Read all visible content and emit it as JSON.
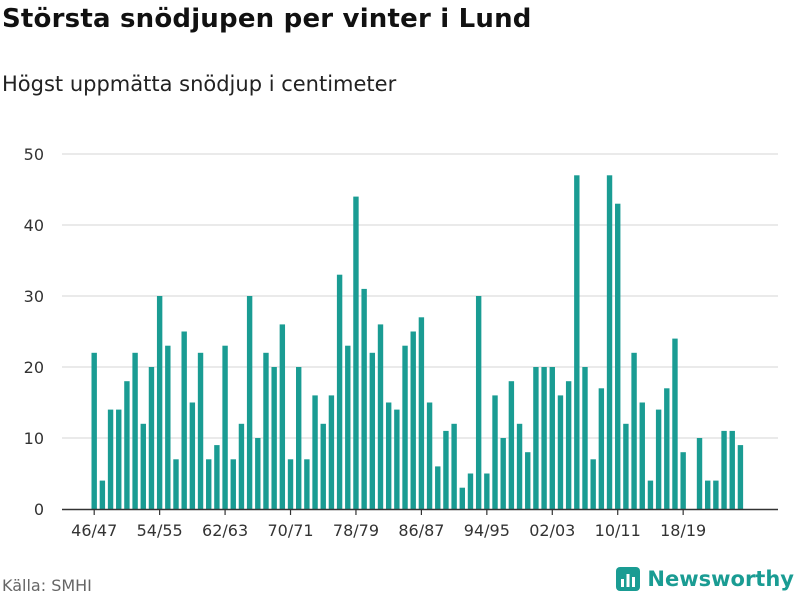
{
  "header": {
    "title": "Största snödjupen per vinter i Lund",
    "subtitle": "Högst uppmätta snödjup i centimeter"
  },
  "footer": {
    "source": "Källa: SMHI",
    "brand": "Newsworthy"
  },
  "colors": {
    "bar": "#1a9c93",
    "grid": "#dddddd",
    "axis": "#333333",
    "brand": "#1a9c93"
  },
  "chart_data": {
    "type": "bar",
    "title": "Största snödjupen per vinter i Lund",
    "subtitle": "Högst uppmätta snödjup i centimeter",
    "xlabel": "",
    "ylabel": "",
    "ylim": [
      0,
      50
    ],
    "yticks": [
      0,
      10,
      20,
      30,
      40,
      50
    ],
    "grid": true,
    "first_season_start": 1946,
    "tick_labels": [
      "46/47",
      "54/55",
      "62/63",
      "70/71",
      "78/79",
      "86/87",
      "94/95",
      "02/03",
      "10/11",
      "18/19"
    ],
    "categories": [
      "46/47",
      "47/48",
      "48/49",
      "49/50",
      "50/51",
      "51/52",
      "52/53",
      "53/54",
      "54/55",
      "55/56",
      "56/57",
      "57/58",
      "58/59",
      "59/60",
      "60/61",
      "61/62",
      "62/63",
      "63/64",
      "64/65",
      "65/66",
      "66/67",
      "67/68",
      "68/69",
      "69/70",
      "70/71",
      "71/72",
      "72/73",
      "73/74",
      "74/75",
      "75/76",
      "76/77",
      "77/78",
      "78/79",
      "79/80",
      "80/81",
      "81/82",
      "82/83",
      "83/84",
      "84/85",
      "85/86",
      "86/87",
      "87/88",
      "88/89",
      "89/90",
      "90/91",
      "91/92",
      "92/93",
      "93/94",
      "94/95",
      "95/96",
      "96/97",
      "97/98",
      "98/99",
      "99/00",
      "00/01",
      "01/02",
      "02/03",
      "03/04",
      "04/05",
      "05/06",
      "06/07",
      "07/08",
      "08/09",
      "09/10",
      "10/11",
      "11/12",
      "12/13",
      "13/14",
      "14/15",
      "15/16",
      "16/17",
      "17/18",
      "18/19",
      "19/20",
      "20/21",
      "21/22",
      "22/23",
      "23/24",
      "24/25",
      "25/26"
    ],
    "values": [
      22,
      4,
      14,
      14,
      18,
      22,
      12,
      20,
      30,
      23,
      7,
      25,
      15,
      22,
      7,
      9,
      23,
      7,
      12,
      30,
      10,
      22,
      20,
      26,
      7,
      20,
      7,
      16,
      12,
      16,
      33,
      23,
      44,
      31,
      22,
      26,
      15,
      14,
      23,
      25,
      27,
      15,
      6,
      11,
      12,
      3,
      5,
      30,
      5,
      16,
      10,
      18,
      12,
      8,
      20,
      20,
      20,
      16,
      18,
      47,
      20,
      7,
      17,
      47,
      43,
      12,
      22,
      15,
      4,
      14,
      17,
      24,
      8,
      null,
      10,
      4,
      4,
      11,
      11,
      9
    ]
  }
}
